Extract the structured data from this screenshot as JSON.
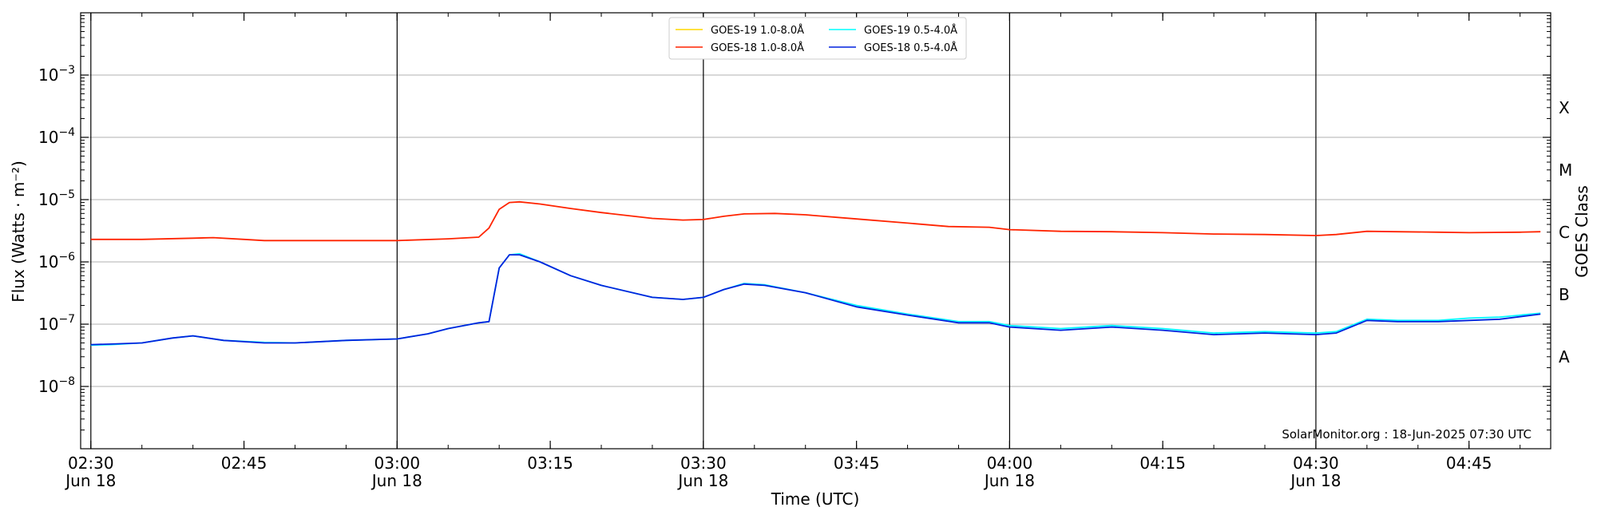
{
  "chart_data": {
    "type": "line",
    "xlabel": "Time (UTC)",
    "ylabel": "Flux (Watts · m⁻²)",
    "y2label": "GOES Class",
    "yscale": "log",
    "ylim": [
      1e-09,
      0.01
    ],
    "xlim": [
      "02:29",
      "04:53"
    ],
    "x_major_ticks": [
      {
        "t": "02:30",
        "label": "02:30",
        "sub": "Jun 18"
      },
      {
        "t": "02:45",
        "label": "02:45",
        "sub": ""
      },
      {
        "t": "03:00",
        "label": "03:00",
        "sub": "Jun 18"
      },
      {
        "t": "03:15",
        "label": "03:15",
        "sub": ""
      },
      {
        "t": "03:30",
        "label": "03:30",
        "sub": "Jun 18"
      },
      {
        "t": "03:45",
        "label": "03:45",
        "sub": ""
      },
      {
        "t": "04:00",
        "label": "04:00",
        "sub": "Jun 18"
      },
      {
        "t": "04:15",
        "label": "04:15",
        "sub": ""
      },
      {
        "t": "04:30",
        "label": "04:30",
        "sub": "Jun 18"
      },
      {
        "t": "04:45",
        "label": "04:45",
        "sub": ""
      }
    ],
    "vertical_lines": [
      "02:30",
      "03:00",
      "03:30",
      "04:00",
      "04:30"
    ],
    "y_ticks": [
      {
        "value": 0.001,
        "base": "10",
        "exp": "−3"
      },
      {
        "value": 0.0001,
        "base": "10",
        "exp": "−4"
      },
      {
        "value": 1e-05,
        "base": "10",
        "exp": "−5"
      },
      {
        "value": 1e-06,
        "base": "10",
        "exp": "−6"
      },
      {
        "value": 1e-07,
        "base": "10",
        "exp": "−7"
      },
      {
        "value": 1e-08,
        "base": "10",
        "exp": "−8"
      }
    ],
    "goes_classes": [
      {
        "label": "X",
        "value": 0.0003
      },
      {
        "label": "M",
        "value": 3e-05
      },
      {
        "label": "C",
        "value": 3e-06
      },
      {
        "label": "B",
        "value": 3e-07
      },
      {
        "label": "A",
        "value": 3e-08
      }
    ],
    "grid": true,
    "legend_position": "top-center",
    "credit": "SolarMonitor.org : 18-Jun-2025 07:30 UTC",
    "series": [
      {
        "name": "GOES-19 1.0-8.0Å",
        "color": "#ffd700",
        "data": []
      },
      {
        "name": "GOES-18 1.0-8.0Å",
        "color": "#ff2400",
        "data": [
          [
            "02:30",
            2.3e-06
          ],
          [
            "02:35",
            2.3e-06
          ],
          [
            "02:40",
            2.4e-06
          ],
          [
            "02:42",
            2.45e-06
          ],
          [
            "02:45",
            2.3e-06
          ],
          [
            "02:47",
            2.2e-06
          ],
          [
            "02:55",
            2.2e-06
          ],
          [
            "03:00",
            2.2e-06
          ],
          [
            "03:05",
            2.35e-06
          ],
          [
            "03:08",
            2.5e-06
          ],
          [
            "03:09",
            3.5e-06
          ],
          [
            "03:10",
            7e-06
          ],
          [
            "03:11",
            9e-06
          ],
          [
            "03:12",
            9.2e-06
          ],
          [
            "03:14",
            8.5e-06
          ],
          [
            "03:17",
            7.2e-06
          ],
          [
            "03:20",
            6.2e-06
          ],
          [
            "03:25",
            5e-06
          ],
          [
            "03:28",
            4.7e-06
          ],
          [
            "03:30",
            4.8e-06
          ],
          [
            "03:32",
            5.4e-06
          ],
          [
            "03:34",
            5.9e-06
          ],
          [
            "03:37",
            6e-06
          ],
          [
            "03:40",
            5.7e-06
          ],
          [
            "03:45",
            4.9e-06
          ],
          [
            "03:50",
            4.2e-06
          ],
          [
            "03:54",
            3.7e-06
          ],
          [
            "03:58",
            3.6e-06
          ],
          [
            "04:00",
            3.3e-06
          ],
          [
            "04:05",
            3.1e-06
          ],
          [
            "04:10",
            3.05e-06
          ],
          [
            "04:15",
            2.95e-06
          ],
          [
            "04:20",
            2.8e-06
          ],
          [
            "04:25",
            2.75e-06
          ],
          [
            "04:30",
            2.65e-06
          ],
          [
            "04:32",
            2.75e-06
          ],
          [
            "04:35",
            3.1e-06
          ],
          [
            "04:38",
            3.05e-06
          ],
          [
            "04:42",
            3e-06
          ],
          [
            "04:45",
            2.95e-06
          ],
          [
            "04:50",
            3e-06
          ],
          [
            "04:52",
            3.05e-06
          ]
        ]
      },
      {
        "name": "GOES-19 0.5-4.0Å",
        "color": "#00ffff",
        "data": [
          [
            "02:30",
            4.6e-08
          ],
          [
            "02:32",
            4.7e-08
          ],
          [
            "02:35",
            5e-08
          ],
          [
            "02:38",
            6e-08
          ],
          [
            "02:40",
            6.5e-08
          ],
          [
            "02:43",
            5.5e-08
          ],
          [
            "02:47",
            5.1e-08
          ],
          [
            "02:50",
            5e-08
          ],
          [
            "02:55",
            5.5e-08
          ],
          [
            "03:00",
            5.8e-08
          ],
          [
            "03:03",
            7e-08
          ],
          [
            "03:05",
            8.5e-08
          ],
          [
            "03:08",
            1.05e-07
          ],
          [
            "03:09",
            1.1e-07
          ],
          [
            "03:10",
            8e-07
          ],
          [
            "03:11",
            1.3e-06
          ],
          [
            "03:12",
            1.35e-06
          ],
          [
            "03:14",
            1e-06
          ],
          [
            "03:17",
            6e-07
          ],
          [
            "03:20",
            4.2e-07
          ],
          [
            "03:25",
            2.7e-07
          ],
          [
            "03:28",
            2.5e-07
          ],
          [
            "03:30",
            2.7e-07
          ],
          [
            "03:32",
            3.6e-07
          ],
          [
            "03:34",
            4.5e-07
          ],
          [
            "03:36",
            4.3e-07
          ],
          [
            "03:40",
            3.2e-07
          ],
          [
            "03:45",
            2e-07
          ],
          [
            "03:50",
            1.45e-07
          ],
          [
            "03:55",
            1.1e-07
          ],
          [
            "03:58",
            1.1e-07
          ],
          [
            "04:00",
            9.5e-08
          ],
          [
            "04:05",
            8.5e-08
          ],
          [
            "04:10",
            9.5e-08
          ],
          [
            "04:15",
            8.5e-08
          ],
          [
            "04:20",
            7.2e-08
          ],
          [
            "04:25",
            7.6e-08
          ],
          [
            "04:30",
            7.2e-08
          ],
          [
            "04:32",
            7.6e-08
          ],
          [
            "04:35",
            1.2e-07
          ],
          [
            "04:38",
            1.15e-07
          ],
          [
            "04:42",
            1.15e-07
          ],
          [
            "04:45",
            1.25e-07
          ],
          [
            "04:48",
            1.3e-07
          ],
          [
            "04:52",
            1.5e-07
          ]
        ]
      },
      {
        "name": "GOES-18 0.5-4.0Å",
        "color": "#0022dd",
        "data": [
          [
            "02:30",
            4.7e-08
          ],
          [
            "02:32",
            4.8e-08
          ],
          [
            "02:35",
            5e-08
          ],
          [
            "02:38",
            6e-08
          ],
          [
            "02:40",
            6.5e-08
          ],
          [
            "02:43",
            5.5e-08
          ],
          [
            "02:47",
            5e-08
          ],
          [
            "02:50",
            5e-08
          ],
          [
            "02:55",
            5.5e-08
          ],
          [
            "03:00",
            5.8e-08
          ],
          [
            "03:03",
            7e-08
          ],
          [
            "03:05",
            8.5e-08
          ],
          [
            "03:08",
            1.05e-07
          ],
          [
            "03:09",
            1.1e-07
          ],
          [
            "03:10",
            8e-07
          ],
          [
            "03:11",
            1.3e-06
          ],
          [
            "03:12",
            1.3e-06
          ],
          [
            "03:14",
            1e-06
          ],
          [
            "03:17",
            6e-07
          ],
          [
            "03:20",
            4.2e-07
          ],
          [
            "03:25",
            2.7e-07
          ],
          [
            "03:28",
            2.5e-07
          ],
          [
            "03:30",
            2.7e-07
          ],
          [
            "03:32",
            3.6e-07
          ],
          [
            "03:34",
            4.4e-07
          ],
          [
            "03:36",
            4.2e-07
          ],
          [
            "03:40",
            3.2e-07
          ],
          [
            "03:45",
            1.9e-07
          ],
          [
            "03:50",
            1.4e-07
          ],
          [
            "03:55",
            1.05e-07
          ],
          [
            "03:58",
            1.05e-07
          ],
          [
            "04:00",
            9e-08
          ],
          [
            "04:05",
            8e-08
          ],
          [
            "04:10",
            9e-08
          ],
          [
            "04:15",
            8e-08
          ],
          [
            "04:20",
            6.8e-08
          ],
          [
            "04:25",
            7.2e-08
          ],
          [
            "04:30",
            6.8e-08
          ],
          [
            "04:32",
            7.2e-08
          ],
          [
            "04:35",
            1.15e-07
          ],
          [
            "04:38",
            1.1e-07
          ],
          [
            "04:42",
            1.1e-07
          ],
          [
            "04:45",
            1.15e-07
          ],
          [
            "04:48",
            1.2e-07
          ],
          [
            "04:52",
            1.45e-07
          ]
        ]
      }
    ]
  }
}
